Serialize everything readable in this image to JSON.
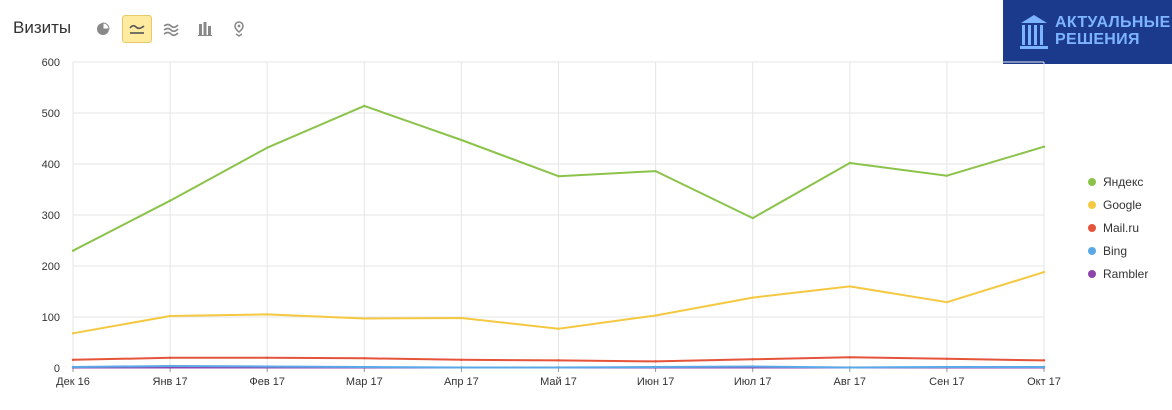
{
  "header": {
    "title": "Визиты",
    "tools": [
      {
        "icon": "pie-chart-icon",
        "active": false
      },
      {
        "icon": "line-chart-icon",
        "active": true
      },
      {
        "icon": "area-chart-icon",
        "active": false
      },
      {
        "icon": "bar-chart-icon",
        "active": false
      },
      {
        "icon": "map-pin-icon",
        "active": false
      }
    ]
  },
  "logo": {
    "line1": "АКТУАЛЬНЫЕ",
    "line2": "РЕШЕНИЯ",
    "color": "#1c3a8c"
  },
  "chart_data": {
    "type": "line",
    "categories": [
      "Дек 16",
      "Янв 17",
      "Фев 17",
      "Мар 17",
      "Апр 17",
      "Май 17",
      "Июн 17",
      "Июл 17",
      "Авг 17",
      "Сен 17",
      "Окт 17"
    ],
    "ylim": [
      0,
      600
    ],
    "yticks": [
      0,
      100,
      200,
      300,
      400,
      500,
      600
    ],
    "grid": true,
    "legend_position": "right",
    "series": [
      {
        "name": "Яндекс",
        "color": "#8bc34a",
        "values": [
          230,
          328,
          432,
          514,
          447,
          376,
          386,
          294,
          402,
          377,
          434
        ]
      },
      {
        "name": "Google",
        "color": "#f5c842",
        "values": [
          68,
          102,
          105,
          97,
          98,
          77,
          103,
          138,
          160,
          129,
          188
        ]
      },
      {
        "name": "Mail.ru",
        "color": "#e5533b",
        "values": [
          16,
          20,
          20,
          19,
          16,
          15,
          13,
          17,
          21,
          18,
          15
        ]
      },
      {
        "name": "Bing",
        "color": "#5aa9e6",
        "values": [
          2,
          4,
          3,
          2,
          1,
          1,
          2,
          3,
          1,
          2,
          2
        ]
      },
      {
        "name": "Rambler",
        "color": "#8e44ad",
        "values": [
          1,
          1,
          1,
          1,
          1,
          1,
          1,
          1,
          1,
          1,
          1
        ]
      }
    ]
  }
}
